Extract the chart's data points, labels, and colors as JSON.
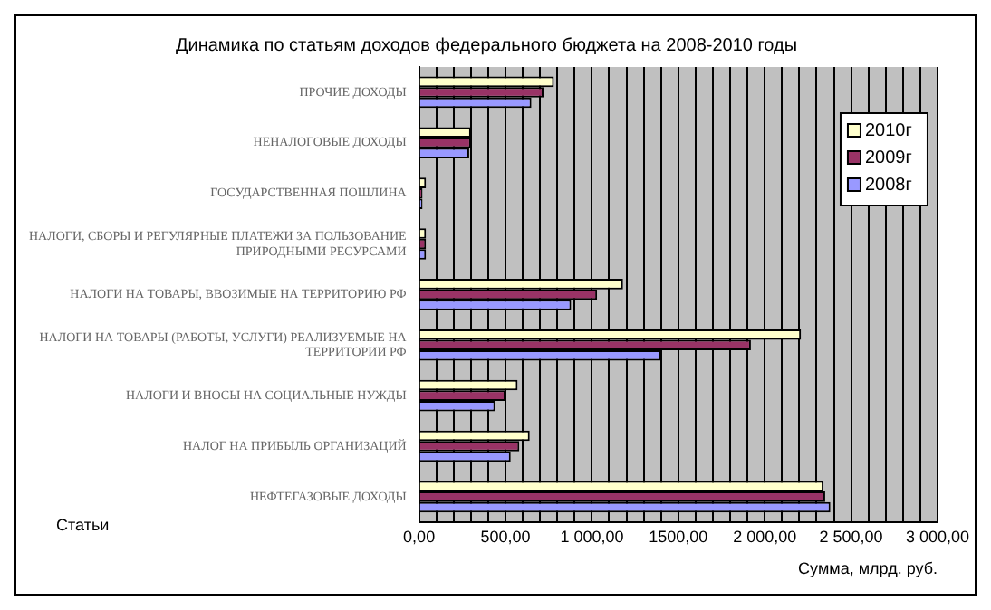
{
  "chart_data": {
    "type": "bar",
    "orientation": "horizontal",
    "title": "Динамика по статьям доходов федерального бюджета на 2008-2010 годы",
    "xlabel": "Сумма, млрд. руб.",
    "ylabel": "Статьи",
    "categories": [
      "ПРОЧИЕ ДОХОДЫ",
      "НЕНАЛОГОВЫЕ ДОХОДЫ",
      "ГОСУДАРСТВЕННАЯ ПОШЛИНА",
      "НАЛОГИ, СБОРЫ И РЕГУЛЯРНЫЕ ПЛАТЕЖИ ЗА ПОЛЬЗОВАНИЕ ПРИРОДНЫМИ РЕСУРСАМИ",
      "НАЛОГИ НА ТОВАРЫ, ВВОЗИМЫЕ НА ТЕРРИТОРИЮ РФ",
      "НАЛОГИ НА ТОВАРЫ (РАБОТЫ, УСЛУГИ) РЕАЛИЗУЕМЫЕ НА ТЕРРИТОРИИ РФ",
      "НАЛОГИ И ВНОСЫ НА СОЦИАЛЬНЫЕ НУЖДЫ",
      "НАЛОГ НА ПРИБЫЛЬ ОРГАНИЗАЦИЙ",
      "НЕФТЕГАЗОВЫЕ ДОХОДЫ"
    ],
    "series": [
      {
        "name": "2010г",
        "color": "#ffffcc",
        "values": [
          780,
          300,
          40,
          40,
          1180,
          2210,
          570,
          640,
          2340
        ]
      },
      {
        "name": "2009г",
        "color": "#993366",
        "values": [
          720,
          300,
          20,
          40,
          1030,
          1920,
          500,
          580,
          2350
        ]
      },
      {
        "name": "2008г",
        "color": "#9999ff",
        "values": [
          650,
          290,
          20,
          40,
          880,
          1400,
          440,
          530,
          2380
        ]
      }
    ],
    "xlim": [
      0,
      3000
    ],
    "xticks": [
      {
        "value": 0,
        "label": "0,00"
      },
      {
        "value": 100,
        "label": null
      },
      {
        "value": 200,
        "label": null
      },
      {
        "value": 300,
        "label": null
      },
      {
        "value": 400,
        "label": null
      },
      {
        "value": 500,
        "label": "500,00"
      },
      {
        "value": 600,
        "label": null
      },
      {
        "value": 700,
        "label": null
      },
      {
        "value": 800,
        "label": null
      },
      {
        "value": 900,
        "label": null
      },
      {
        "value": 1000,
        "label": "1 000,00"
      },
      {
        "value": 1100,
        "label": null
      },
      {
        "value": 1200,
        "label": null
      },
      {
        "value": 1300,
        "label": null
      },
      {
        "value": 1400,
        "label": null
      },
      {
        "value": 1500,
        "label": "1500,00"
      },
      {
        "value": 1600,
        "label": null
      },
      {
        "value": 1700,
        "label": null
      },
      {
        "value": 1800,
        "label": null
      },
      {
        "value": 1900,
        "label": null
      },
      {
        "value": 2000,
        "label": "2 000,00"
      },
      {
        "value": 2100,
        "label": null
      },
      {
        "value": 2200,
        "label": null
      },
      {
        "value": 2300,
        "label": null
      },
      {
        "value": 2400,
        "label": null
      },
      {
        "value": 2500,
        "label": "2 500,00"
      },
      {
        "value": 2600,
        "label": null
      },
      {
        "value": 2700,
        "label": null
      },
      {
        "value": 2800,
        "label": null
      },
      {
        "value": 2900,
        "label": null
      },
      {
        "value": 3000,
        "label": "3 000,00"
      }
    ],
    "grid": "x",
    "legend": "right"
  }
}
